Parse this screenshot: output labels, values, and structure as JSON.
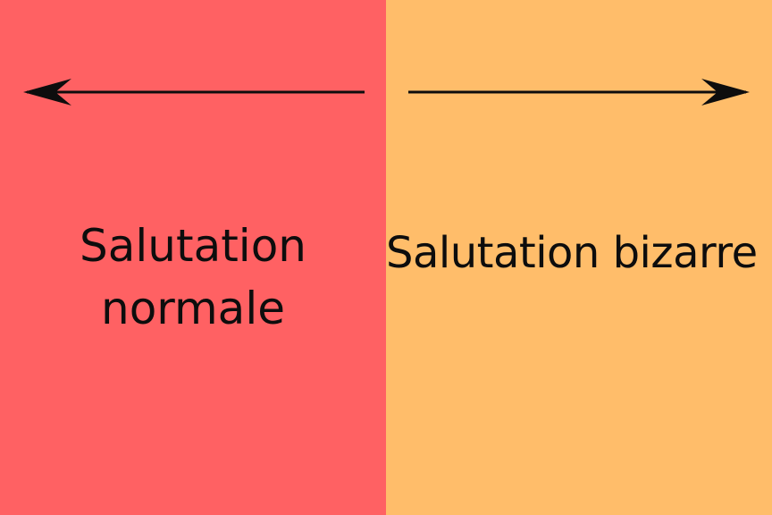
{
  "colors": {
    "left_panel": "#ff6163",
    "right_panel": "#ffbd6a",
    "ink": "#0d0d0d"
  },
  "left": {
    "arrow_direction": "left",
    "label_line1": "Salutation",
    "label_line2": "normale"
  },
  "right": {
    "arrow_direction": "right",
    "label": "Salutation bizarre"
  }
}
